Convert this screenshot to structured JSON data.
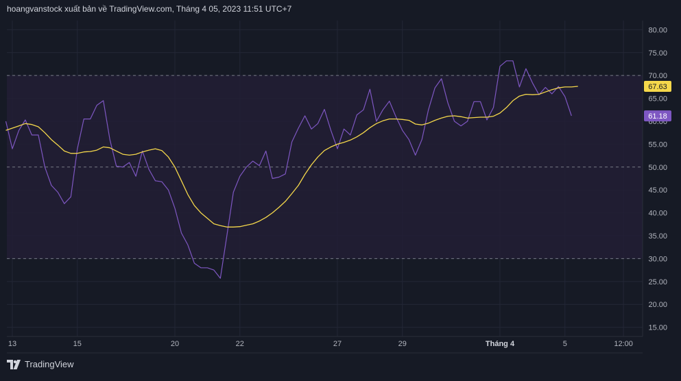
{
  "header": {
    "published_text": "hoangvanstock xuất bản về TradingView.com, Tháng 4 05, 2023 11:51 UTC+7"
  },
  "footer": {
    "brand": "TradingView",
    "logo_icon": "tradingview-logo-icon"
  },
  "colors": {
    "background": "#161a25",
    "rsi_line": "#7e57c2",
    "ma_line": "#f5d84b",
    "band_fill": "#221f35",
    "grid": "#232736",
    "dashed": "#787b86",
    "rsi_badge": "#7e57c2",
    "ma_badge": "#f5d84b"
  },
  "chart_data": {
    "type": "line",
    "title": "",
    "xlabel": "",
    "ylabel": "",
    "ylim": [
      13,
      82
    ],
    "y_ticks": [
      "80.00",
      "75.00",
      "70.00",
      "65.00",
      "60.00",
      "55.00",
      "50.00",
      "45.00",
      "40.00",
      "35.00",
      "30.00",
      "25.00",
      "20.00",
      "15.00"
    ],
    "x_ticks": [
      {
        "label": "13",
        "x": 1
      },
      {
        "label": "15",
        "x": 11
      },
      {
        "label": "20",
        "x": 26
      },
      {
        "label": "22",
        "x": 36
      },
      {
        "label": "27",
        "x": 51
      },
      {
        "label": "29",
        "x": 61
      },
      {
        "label": "Tháng 4",
        "x": 76
      },
      {
        "label": "5",
        "x": 86
      },
      {
        "label": "12:00",
        "x": 95
      }
    ],
    "levels": [
      70,
      50,
      30
    ],
    "band": [
      30,
      70
    ],
    "grid": true,
    "series": [
      {
        "key": "rsi",
        "x": [
          0,
          1,
          2,
          3,
          4,
          5,
          6,
          7,
          8,
          9,
          10,
          11,
          12,
          13,
          14,
          15,
          16,
          17,
          18,
          19,
          20,
          21,
          22,
          23,
          24,
          25,
          26,
          27,
          28,
          29,
          30,
          31,
          32,
          33,
          34,
          35,
          36,
          37,
          38,
          39,
          40,
          41,
          42,
          43,
          44,
          45,
          46,
          47,
          48,
          49,
          50,
          51,
          52,
          53,
          54,
          55,
          56,
          57,
          58,
          59,
          60,
          61,
          62,
          63,
          64,
          65,
          66,
          67,
          68,
          69,
          70,
          71,
          72,
          73,
          74,
          75,
          76,
          77,
          78,
          79,
          80,
          81,
          82,
          83,
          84,
          85,
          86,
          87
        ],
        "values": [
          60.0,
          54.0,
          58.0,
          60.3,
          57.0,
          57.0,
          50.0,
          46.0,
          44.5,
          42.0,
          43.5,
          54.0,
          60.5,
          60.5,
          63.5,
          64.5,
          56.0,
          50.2,
          50.0,
          51.0,
          48.0,
          53.5,
          49.5,
          47.0,
          46.8,
          45.0,
          41.0,
          35.6,
          33.0,
          29.0,
          28.0,
          28.0,
          27.5,
          25.7,
          35.0,
          44.5,
          48.0,
          50.0,
          51.3,
          50.3,
          53.5,
          47.5,
          47.8,
          48.5,
          55.5,
          58.5,
          61.2,
          58.3,
          59.5,
          62.6,
          58.0,
          54.0,
          58.3,
          57.0,
          61.4,
          62.5,
          67.0,
          60.0,
          62.5,
          64.4,
          61.0,
          58.0,
          56.0,
          52.6,
          56.0,
          62.5,
          67.3,
          69.3,
          64.0,
          60.0,
          59.0,
          60.0,
          64.3,
          64.3,
          60.3,
          63.0,
          72.0,
          73.2,
          73.2,
          67.5,
          71.5,
          68.4,
          65.8,
          67.4,
          66.0,
          67.6,
          65.4,
          61.2
        ]
      },
      {
        "key": "ma",
        "x": [
          0,
          1,
          2,
          3,
          4,
          5,
          6,
          7,
          8,
          9,
          10,
          11,
          12,
          13,
          14,
          15,
          16,
          17,
          18,
          19,
          20,
          21,
          22,
          23,
          24,
          25,
          26,
          27,
          28,
          29,
          30,
          31,
          32,
          33,
          34,
          35,
          36,
          37,
          38,
          39,
          40,
          41,
          42,
          43,
          44,
          45,
          46,
          47,
          48,
          49,
          50,
          51,
          52,
          53,
          54,
          55,
          56,
          57,
          58,
          59,
          60,
          61,
          62,
          63,
          64,
          65,
          66,
          67,
          68,
          69,
          70,
          71,
          72,
          73,
          74,
          75,
          76,
          77,
          78,
          79,
          80,
          81,
          82,
          83,
          84,
          85,
          86,
          87,
          88
        ],
        "values": [
          58.0,
          58.5,
          59.0,
          59.5,
          59.3,
          58.8,
          57.5,
          56.0,
          54.8,
          53.5,
          53.0,
          53.0,
          53.3,
          53.4,
          53.7,
          54.4,
          54.2,
          53.5,
          52.8,
          52.6,
          52.8,
          53.3,
          53.7,
          54.0,
          53.6,
          52.2,
          50.0,
          47.0,
          44.0,
          41.6,
          40.0,
          38.8,
          37.6,
          37.2,
          36.9,
          36.9,
          37.0,
          37.3,
          37.6,
          38.2,
          39.0,
          40.0,
          41.2,
          42.5,
          44.2,
          46.0,
          48.4,
          50.5,
          52.2,
          53.6,
          54.4,
          55.0,
          55.4,
          55.9,
          56.6,
          57.5,
          58.6,
          59.5,
          60.1,
          60.5,
          60.5,
          60.4,
          60.2,
          59.4,
          59.2,
          59.6,
          60.2,
          60.7,
          61.1,
          61.2,
          61.0,
          60.7,
          60.8,
          60.9,
          60.9,
          61.1,
          61.8,
          63.0,
          64.5,
          65.5,
          65.9,
          65.8,
          65.9,
          66.4,
          66.9,
          67.3,
          67.5,
          67.5,
          67.63
        ]
      }
    ],
    "last_values": {
      "ma": "67.63",
      "rsi": "61.18"
    }
  }
}
